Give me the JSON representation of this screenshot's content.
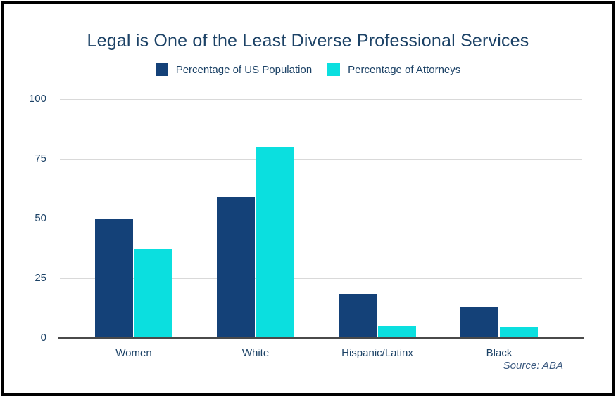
{
  "chart_data": {
    "type": "bar",
    "title": "Legal is One of the Least Diverse Professional Services",
    "categories": [
      "Women",
      "White",
      "Hispanic/Latinx",
      "Black"
    ],
    "series": [
      {
        "name": "Percentage of US Population",
        "color": "#144178",
        "values": [
          50,
          59,
          18.5,
          13
        ]
      },
      {
        "name": "Percentage of Attorneys",
        "color": "#0bdfdf",
        "values": [
          37.5,
          80,
          5,
          4.5
        ]
      }
    ],
    "xlabel": "",
    "ylabel": "",
    "ylim": [
      0,
      100
    ],
    "yticks": [
      0,
      25,
      50,
      75,
      100
    ],
    "grid": true,
    "legend_position": "top",
    "source": "Source: ABA",
    "colors": {
      "text": "#1c4266",
      "gridline": "#d9d9d9",
      "baseline": "#4a4a4a",
      "background": "#ffffff",
      "border": "#000000"
    }
  }
}
